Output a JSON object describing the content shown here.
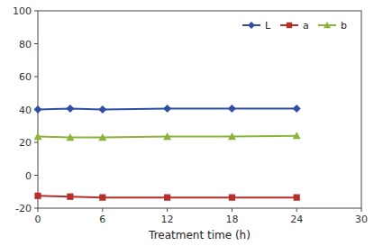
{
  "chart_data": {
    "type": "line",
    "xlabel": "Treatment time (h)",
    "x": [
      0,
      3,
      6,
      12,
      18,
      24
    ],
    "series": [
      {
        "name": "L",
        "color": "#2e4fa3",
        "marker": "diamond",
        "values": [
          40.0,
          40.5,
          40.0,
          40.5,
          40.5,
          40.5
        ]
      },
      {
        "name": "a",
        "color": "#b5302a",
        "marker": "square",
        "values": [
          -12.5,
          -13.0,
          -13.5,
          -13.5,
          -13.5,
          -13.5
        ]
      },
      {
        "name": "b",
        "color": "#8cb33a",
        "marker": "triangle",
        "values": [
          23.5,
          23.0,
          23.0,
          23.5,
          23.5,
          24.0
        ]
      }
    ],
    "xlim": [
      0,
      30
    ],
    "ylim": [
      -20,
      100
    ],
    "xticks": [
      0,
      6,
      12,
      18,
      24,
      30
    ],
    "yticks": [
      -20,
      0,
      20,
      40,
      60,
      80,
      100
    ],
    "legend": "upper right",
    "grid": false
  }
}
